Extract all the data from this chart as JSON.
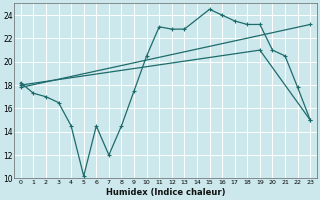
{
  "xlabel": "Humidex (Indice chaleur)",
  "bg_color": "#cce8ec",
  "line_color": "#1e6b6b",
  "grid_color": "#ffffff",
  "xlim": [
    -0.5,
    23.5
  ],
  "ylim": [
    10,
    25
  ],
  "yticks": [
    10,
    12,
    14,
    16,
    18,
    20,
    22,
    24
  ],
  "xticks": [
    0,
    1,
    2,
    3,
    4,
    5,
    6,
    7,
    8,
    9,
    10,
    11,
    12,
    13,
    14,
    15,
    16,
    17,
    18,
    19,
    20,
    21,
    22,
    23
  ],
  "line1_x": [
    0,
    1,
    2,
    3,
    4,
    5,
    6,
    7,
    8,
    9,
    10,
    11,
    12,
    13,
    15,
    16,
    17,
    18,
    19,
    20,
    21,
    22,
    23
  ],
  "line1_y": [
    18.2,
    17.3,
    17.0,
    16.5,
    14.5,
    10.2,
    14.5,
    12.0,
    14.5,
    17.5,
    20.5,
    23.0,
    22.8,
    22.8,
    24.5,
    24.0,
    23.5,
    23.2,
    23.2,
    21.0,
    20.5,
    17.8,
    15.0
  ],
  "line2_x": [
    0,
    19,
    23
  ],
  "line2_y": [
    18.0,
    21.0,
    15.0
  ],
  "line3_x": [
    0,
    23
  ],
  "line3_y": [
    17.8,
    23.2
  ]
}
